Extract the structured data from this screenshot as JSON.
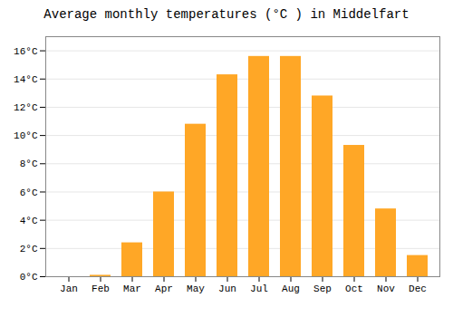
{
  "chart_data": {
    "type": "bar",
    "title": "Average monthly temperatures (°C ) in Middelfart",
    "categories": [
      "Jan",
      "Feb",
      "Mar",
      "Apr",
      "May",
      "Jun",
      "Jul",
      "Aug",
      "Sep",
      "Oct",
      "Nov",
      "Dec"
    ],
    "values": [
      0.0,
      0.1,
      2.4,
      6.0,
      10.8,
      14.3,
      15.6,
      15.6,
      12.8,
      9.3,
      4.8,
      1.5
    ],
    "color": "#FFA726",
    "ylim": [
      0,
      17
    ],
    "yticks": [
      {
        "value": 0,
        "label": "0°C"
      },
      {
        "value": 2,
        "label": "2°C"
      },
      {
        "value": 4,
        "label": "4°C"
      },
      {
        "value": 6,
        "label": "6°C"
      },
      {
        "value": 8,
        "label": "8°C"
      },
      {
        "value": 10,
        "label": "10°C"
      },
      {
        "value": 12,
        "label": "12°C"
      },
      {
        "value": 14,
        "label": "14°C"
      },
      {
        "value": 16,
        "label": "16°C"
      }
    ],
    "grid": true
  }
}
